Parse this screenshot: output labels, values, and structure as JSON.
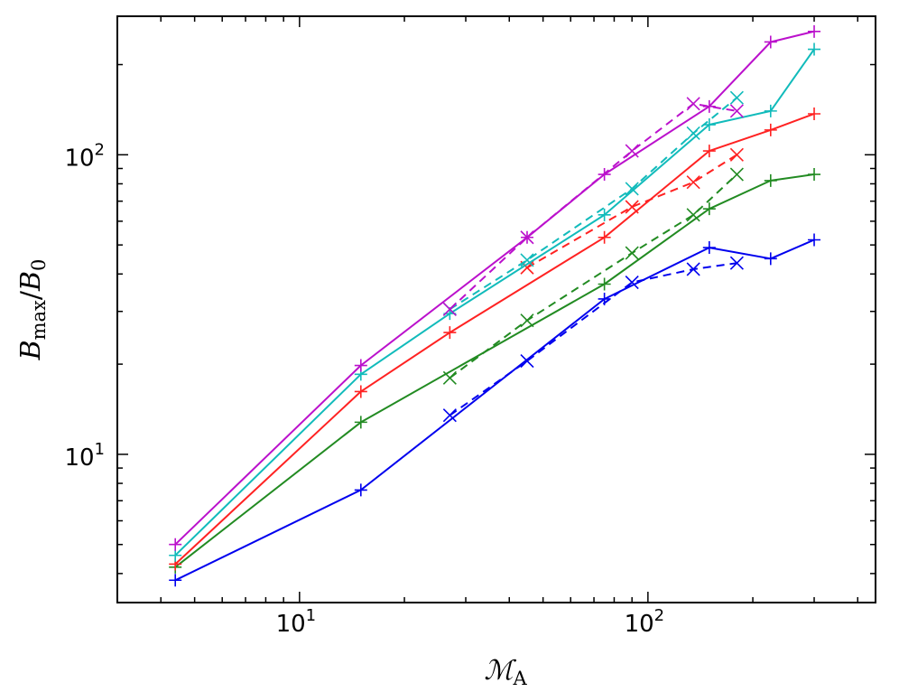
{
  "chart_data": {
    "type": "line",
    "xscale": "log",
    "yscale": "log",
    "xlim": [
      3.0,
      450
    ],
    "ylim": [
      3.2,
      290
    ],
    "xlabel": {
      "main": "ℳ",
      "sub": "A"
    },
    "ylabel": {
      "main": "B",
      "sub": "max",
      "sep": "/",
      "main2": "B",
      "sub2": "0"
    },
    "x_ticks": [
      {
        "base": "10",
        "exp": "1",
        "value": 10
      },
      {
        "base": "10",
        "exp": "2",
        "value": 100
      }
    ],
    "y_ticks": [
      {
        "base": "10",
        "exp": "1",
        "value": 10
      },
      {
        "base": "10",
        "exp": "2",
        "value": 100
      }
    ],
    "grid": false,
    "series": [
      {
        "color": "#0000ee",
        "linestyle": "solid",
        "marker": "+",
        "x": [
          4.4,
          15,
          75,
          150,
          225,
          300
        ],
        "y": [
          3.8,
          7.6,
          33,
          49,
          45,
          52
        ]
      },
      {
        "color": "#0000ee",
        "linestyle": "dashed",
        "marker": "x",
        "x": [
          27,
          45,
          90,
          135,
          180
        ],
        "y": [
          13.5,
          20.5,
          37.5,
          41.5,
          43.5
        ]
      },
      {
        "color": "#228b22",
        "linestyle": "solid",
        "marker": "+",
        "x": [
          4.4,
          15,
          75,
          150,
          225,
          300
        ],
        "y": [
          4.2,
          12.8,
          37,
          66,
          82,
          86
        ]
      },
      {
        "color": "#228b22",
        "linestyle": "dashed",
        "marker": "x",
        "x": [
          27,
          45,
          90,
          135,
          180
        ],
        "y": [
          18,
          28,
          47,
          63,
          86
        ]
      },
      {
        "color": "#ff2222",
        "linestyle": "solid",
        "marker": "+",
        "x": [
          4.4,
          15,
          27,
          75,
          150,
          225,
          300
        ],
        "y": [
          4.3,
          16.2,
          25.5,
          53,
          103,
          121,
          137
        ]
      },
      {
        "color": "#ff2222",
        "linestyle": "dashed",
        "marker": "x",
        "x": [
          45,
          90,
          135,
          180
        ],
        "y": [
          42,
          67,
          81,
          100
        ]
      },
      {
        "color": "#11bbbb",
        "linestyle": "solid",
        "marker": "+",
        "x": [
          4.4,
          15,
          27,
          75,
          150,
          225,
          300
        ],
        "y": [
          4.6,
          18.5,
          29.5,
          63,
          126,
          140,
          225
        ]
      },
      {
        "color": "#11bbbb",
        "linestyle": "dashed",
        "marker": "x",
        "x": [
          27,
          45,
          90,
          135,
          180
        ],
        "y": [
          30.5,
          44.5,
          77,
          118,
          155
        ]
      },
      {
        "color": "#bb11cc",
        "linestyle": "solid",
        "marker": "+",
        "x": [
          4.4,
          15,
          45,
          75,
          150,
          225,
          300
        ],
        "y": [
          5.0,
          19.8,
          53,
          86,
          145,
          238,
          258
        ]
      },
      {
        "color": "#bb11cc",
        "linestyle": "dashed",
        "marker": "x",
        "x": [
          27,
          45,
          90,
          135,
          180
        ],
        "y": [
          30.5,
          53,
          103,
          148,
          140
        ]
      }
    ]
  }
}
